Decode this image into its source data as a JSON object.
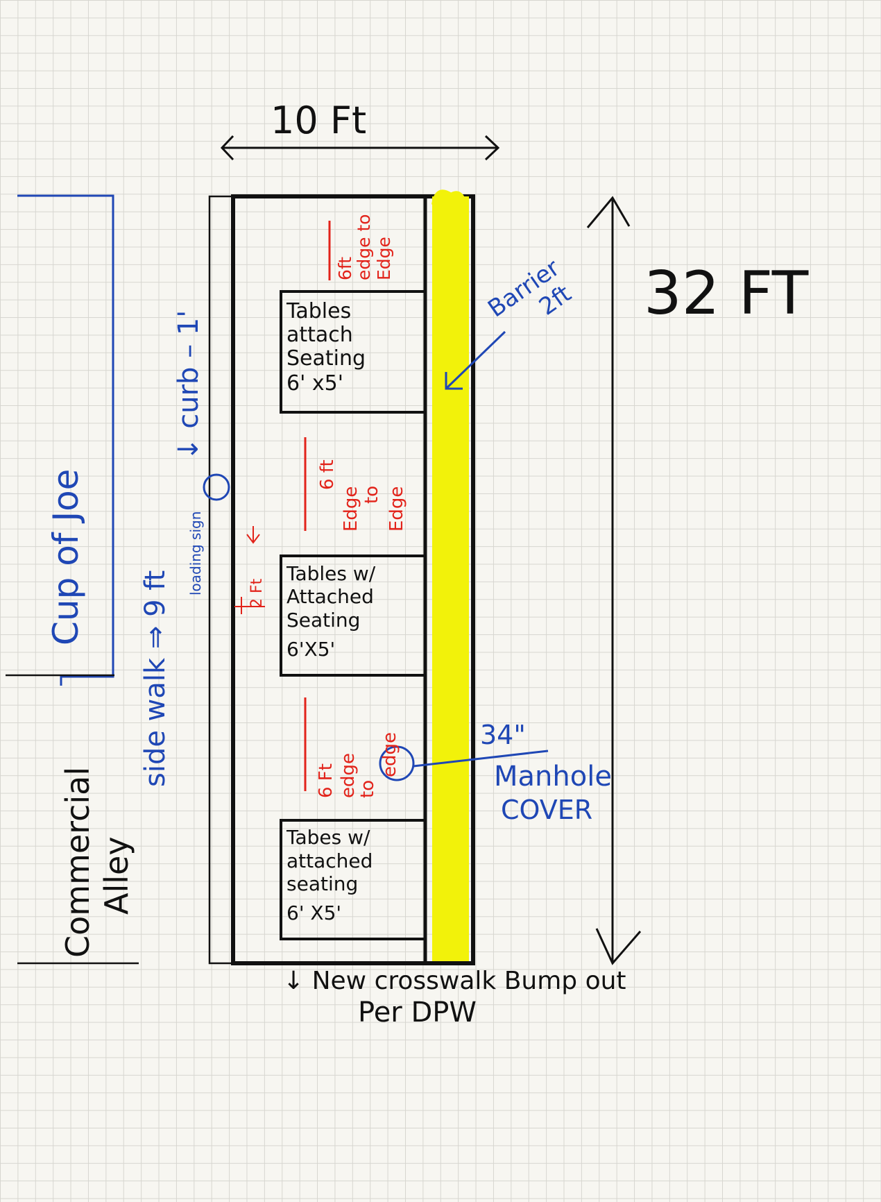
{
  "colors": {
    "ink": "#111111",
    "blue": "#1f47b5",
    "red": "#e2231a",
    "highlight": "#f2f20a",
    "paper": "#f7f6f1",
    "grid": "#d7d6d0"
  },
  "dimensions": {
    "width_label": "10 Ft",
    "length_label": "32 FT"
  },
  "tables": [
    {
      "lines": [
        "Tables",
        "attach",
        "Seating",
        "6' x5'"
      ]
    },
    {
      "lines": [
        "Tables w/",
        "Attached",
        "Seating",
        "6'X5'"
      ]
    },
    {
      "lines": [
        "Tabes w/",
        "attached",
        "seating",
        "6' X5'"
      ]
    }
  ],
  "spacing": {
    "top": [
      "6ft",
      "edge to",
      "Edge"
    ],
    "middle": [
      "6 ft",
      "Edge",
      "to",
      "Edge"
    ],
    "bottom": [
      "6 Ft",
      "edge",
      "to",
      "edge"
    ],
    "gap": "2 Ft"
  },
  "labels": {
    "barrier": [
      "Barrier",
      "2ft"
    ],
    "manhole": [
      "34\"",
      "Manhole",
      "COVER"
    ],
    "business": "Cup of Joe",
    "sidewalk": "side walk ⇒ 9 ft",
    "curb": "↓ curb – 1'",
    "loading_sign": "loading sign",
    "street": [
      "Commercial",
      "Alley"
    ],
    "crosswalk": [
      "↓ New crosswalk Bump out",
      "Per DPW"
    ]
  }
}
